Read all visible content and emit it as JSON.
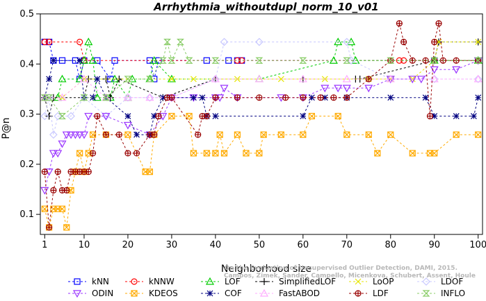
{
  "chart_data": {
    "type": "line",
    "title": "Arrhythmia_withoutdupl_norm_10_v01",
    "xlabel": "Neighborhood size",
    "ylabel": "P@n",
    "xlim": [
      0,
      101
    ],
    "ylim": [
      0.06,
      0.5
    ],
    "xticks": [
      1,
      10,
      20,
      30,
      40,
      50,
      60,
      70,
      80,
      90,
      100
    ],
    "yticks": [
      0.1,
      0.2,
      0.3,
      0.4,
      0.5
    ],
    "grid": false,
    "legend_position": "bottom",
    "watermark": [
      "Campos, Zimek, Sander, Campello, Micenkova, Schubert, Assent, Houle",
      "On the Evaluation of Unsupervised Outlier Detection, DAMI, 2015."
    ],
    "series": [
      {
        "name": "kNN",
        "color": "#0000ff",
        "marker": "square",
        "points": [
          [
            1,
            0.444
          ],
          [
            2,
            0.444
          ],
          [
            3,
            0.407
          ],
          [
            5,
            0.407
          ],
          [
            8,
            0.407
          ],
          [
            9,
            0.37
          ],
          [
            10,
            0.407
          ],
          [
            13,
            0.407
          ],
          [
            16,
            0.37
          ],
          [
            17,
            0.407
          ],
          [
            25,
            0.407
          ],
          [
            26,
            0.37
          ],
          [
            27,
            0.407
          ],
          [
            38,
            0.407
          ],
          [
            43,
            0.407
          ],
          [
            45,
            0.407
          ],
          [
            46,
            0.407
          ],
          [
            90,
            0.407
          ],
          [
            100,
            0.407
          ]
        ]
      },
      {
        "name": "kNNW",
        "color": "#ff0000",
        "marker": "circle",
        "points": [
          [
            1,
            0.444
          ],
          [
            2,
            0.444
          ],
          [
            9,
            0.444
          ],
          [
            10,
            0.407
          ],
          [
            45,
            0.407
          ],
          [
            46,
            0.407
          ],
          [
            80,
            0.407
          ],
          [
            82,
            0.407
          ],
          [
            83,
            0.407
          ],
          [
            90,
            0.407
          ],
          [
            100,
            0.407
          ]
        ]
      },
      {
        "name": "LOF",
        "color": "#00cc00",
        "marker": "triangle-up",
        "points": [
          [
            1,
            0.333
          ],
          [
            4,
            0.333
          ],
          [
            5,
            0.37
          ],
          [
            9,
            0.37
          ],
          [
            10,
            0.407
          ],
          [
            11,
            0.444
          ],
          [
            12,
            0.407
          ],
          [
            13,
            0.333
          ],
          [
            16,
            0.333
          ],
          [
            17,
            0.37
          ],
          [
            20,
            0.333
          ],
          [
            21,
            0.37
          ],
          [
            25,
            0.37
          ],
          [
            26,
            0.407
          ],
          [
            30,
            0.37
          ],
          [
            50,
            0.37
          ],
          [
            67,
            0.407
          ],
          [
            68,
            0.444
          ],
          [
            71,
            0.444
          ],
          [
            72,
            0.407
          ],
          [
            90,
            0.407
          ],
          [
            100,
            0.407
          ]
        ]
      },
      {
        "name": "SimplifiedLOF",
        "color": "#000000",
        "marker": "plus",
        "points": [
          [
            1,
            0.333
          ],
          [
            2,
            0.296
          ],
          [
            3,
            0.333
          ],
          [
            10,
            0.333
          ],
          [
            11,
            0.37
          ],
          [
            15,
            0.37
          ],
          [
            16,
            0.333
          ],
          [
            18,
            0.37
          ],
          [
            28,
            0.333
          ],
          [
            40,
            0.37
          ],
          [
            60,
            0.37
          ],
          [
            72,
            0.37
          ],
          [
            73,
            0.37
          ],
          [
            90,
            0.407
          ],
          [
            91,
            0.444
          ],
          [
            100,
            0.444
          ]
        ]
      },
      {
        "name": "LoOP",
        "color": "#e6e600",
        "marker": "x",
        "points": [
          [
            1,
            0.333
          ],
          [
            5,
            0.333
          ],
          [
            10,
            0.37
          ],
          [
            20,
            0.37
          ],
          [
            30,
            0.37
          ],
          [
            35,
            0.37
          ],
          [
            45,
            0.37
          ],
          [
            55,
            0.37
          ],
          [
            65,
            0.37
          ],
          [
            75,
            0.37
          ],
          [
            80,
            0.37
          ],
          [
            85,
            0.37
          ],
          [
            90,
            0.407
          ],
          [
            91,
            0.444
          ],
          [
            100,
            0.444
          ]
        ]
      },
      {
        "name": "LDOF",
        "color": "#c8c8ff",
        "marker": "diamond",
        "points": [
          [
            1,
            0.296
          ],
          [
            2,
            0.333
          ],
          [
            3,
            0.259
          ],
          [
            4,
            0.296
          ],
          [
            7,
            0.296
          ],
          [
            10,
            0.333
          ],
          [
            15,
            0.296
          ],
          [
            20,
            0.333
          ],
          [
            25,
            0.333
          ],
          [
            30,
            0.333
          ],
          [
            40,
            0.37
          ],
          [
            42,
            0.444
          ],
          [
            50,
            0.444
          ],
          [
            70,
            0.444
          ],
          [
            71,
            0.407
          ],
          [
            80,
            0.37
          ],
          [
            90,
            0.37
          ],
          [
            100,
            0.37
          ]
        ]
      },
      {
        "name": "ODIN",
        "color": "#9933ff",
        "marker": "triangle-down",
        "points": [
          [
            1,
            0.148
          ],
          [
            2,
            0.185
          ],
          [
            3,
            0.222
          ],
          [
            4,
            0.222
          ],
          [
            5,
            0.241
          ],
          [
            6,
            0.259
          ],
          [
            7,
            0.259
          ],
          [
            8,
            0.259
          ],
          [
            9,
            0.259
          ],
          [
            10,
            0.259
          ],
          [
            11,
            0.296
          ],
          [
            15,
            0.296
          ],
          [
            20,
            0.278
          ],
          [
            25,
            0.259
          ],
          [
            28,
            0.296
          ],
          [
            30,
            0.333
          ],
          [
            35,
            0.333
          ],
          [
            40,
            0.333
          ],
          [
            41,
            0.333
          ],
          [
            42,
            0.352
          ],
          [
            45,
            0.333
          ],
          [
            55,
            0.333
          ],
          [
            60,
            0.333
          ],
          [
            65,
            0.352
          ],
          [
            68,
            0.352
          ],
          [
            70,
            0.352
          ],
          [
            75,
            0.352
          ],
          [
            80,
            0.37
          ],
          [
            85,
            0.37
          ],
          [
            87,
            0.37
          ],
          [
            90,
            0.389
          ],
          [
            95,
            0.389
          ],
          [
            100,
            0.407
          ]
        ]
      },
      {
        "name": "KDEOS",
        "color": "#ffaa00",
        "marker": "square-cross",
        "points": [
          [
            1,
            0.111
          ],
          [
            2,
            0.074
          ],
          [
            3,
            0.111
          ],
          [
            4,
            0.111
          ],
          [
            5,
            0.111
          ],
          [
            6,
            0.074
          ],
          [
            7,
            0.148
          ],
          [
            8,
            0.185
          ],
          [
            9,
            0.222
          ],
          [
            10,
            0.185
          ],
          [
            11,
            0.222
          ],
          [
            12,
            0.259
          ],
          [
            15,
            0.259
          ],
          [
            20,
            0.259
          ],
          [
            24,
            0.185
          ],
          [
            25,
            0.185
          ],
          [
            26,
            0.259
          ],
          [
            30,
            0.296
          ],
          [
            34,
            0.296
          ],
          [
            35,
            0.222
          ],
          [
            38,
            0.222
          ],
          [
            40,
            0.222
          ],
          [
            41,
            0.259
          ],
          [
            42,
            0.222
          ],
          [
            45,
            0.259
          ],
          [
            47,
            0.222
          ],
          [
            50,
            0.222
          ],
          [
            51,
            0.259
          ],
          [
            55,
            0.259
          ],
          [
            60,
            0.259
          ],
          [
            62,
            0.296
          ],
          [
            68,
            0.296
          ],
          [
            70,
            0.259
          ],
          [
            75,
            0.259
          ],
          [
            77,
            0.222
          ],
          [
            80,
            0.259
          ],
          [
            85,
            0.222
          ],
          [
            89,
            0.222
          ],
          [
            90,
            0.222
          ],
          [
            95,
            0.259
          ],
          [
            100,
            0.259
          ]
        ]
      },
      {
        "name": "COF",
        "color": "#000080",
        "marker": "star",
        "points": [
          [
            1,
            0.333
          ],
          [
            2,
            0.37
          ],
          [
            3,
            0.407
          ],
          [
            9,
            0.407
          ],
          [
            10,
            0.333
          ],
          [
            12,
            0.333
          ],
          [
            13,
            0.37
          ],
          [
            15,
            0.333
          ],
          [
            20,
            0.296
          ],
          [
            22,
            0.259
          ],
          [
            25,
            0.259
          ],
          [
            26,
            0.296
          ],
          [
            28,
            0.333
          ],
          [
            35,
            0.333
          ],
          [
            37,
            0.333
          ],
          [
            38,
            0.296
          ],
          [
            40,
            0.296
          ],
          [
            60,
            0.296
          ],
          [
            62,
            0.333
          ],
          [
            65,
            0.333
          ],
          [
            70,
            0.333
          ],
          [
            80,
            0.333
          ],
          [
            88,
            0.333
          ],
          [
            90,
            0.296
          ],
          [
            95,
            0.296
          ],
          [
            99,
            0.296
          ],
          [
            100,
            0.333
          ]
        ]
      },
      {
        "name": "FastABOD",
        "color": "#ffaaff",
        "marker": "triangle-up",
        "points": [
          [
            1,
            0.333
          ],
          [
            5,
            0.333
          ],
          [
            10,
            0.37
          ],
          [
            15,
            0.333
          ],
          [
            20,
            0.333
          ],
          [
            25,
            0.333
          ],
          [
            30,
            0.333
          ],
          [
            40,
            0.37
          ],
          [
            50,
            0.37
          ],
          [
            60,
            0.37
          ],
          [
            70,
            0.37
          ],
          [
            80,
            0.37
          ],
          [
            90,
            0.37
          ],
          [
            100,
            0.37
          ]
        ]
      },
      {
        "name": "LDF",
        "color": "#990000",
        "marker": "circle-plus",
        "points": [
          [
            1,
            0.185
          ],
          [
            2,
            0.074
          ],
          [
            3,
            0.148
          ],
          [
            4,
            0.185
          ],
          [
            5,
            0.148
          ],
          [
            6,
            0.148
          ],
          [
            7,
            0.185
          ],
          [
            8,
            0.185
          ],
          [
            9,
            0.185
          ],
          [
            10,
            0.185
          ],
          [
            11,
            0.185
          ],
          [
            12,
            0.222
          ],
          [
            13,
            0.296
          ],
          [
            15,
            0.259
          ],
          [
            18,
            0.259
          ],
          [
            20,
            0.222
          ],
          [
            22,
            0.222
          ],
          [
            25,
            0.259
          ],
          [
            26,
            0.259
          ],
          [
            27,
            0.296
          ],
          [
            29,
            0.333
          ],
          [
            30,
            0.333
          ],
          [
            36,
            0.259
          ],
          [
            37,
            0.296
          ],
          [
            38,
            0.296
          ],
          [
            40,
            0.333
          ],
          [
            45,
            0.333
          ],
          [
            50,
            0.333
          ],
          [
            56,
            0.333
          ],
          [
            60,
            0.333
          ],
          [
            64,
            0.333
          ],
          [
            67,
            0.333
          ],
          [
            70,
            0.333
          ],
          [
            75,
            0.37
          ],
          [
            80,
            0.407
          ],
          [
            82,
            0.481
          ],
          [
            83,
            0.444
          ],
          [
            85,
            0.407
          ],
          [
            88,
            0.407
          ],
          [
            89,
            0.296
          ],
          [
            90,
            0.444
          ],
          [
            91,
            0.481
          ],
          [
            92,
            0.407
          ],
          [
            95,
            0.407
          ],
          [
            100,
            0.407
          ]
        ]
      },
      {
        "name": "INFLO",
        "color": "#88cc66",
        "marker": "hourglass",
        "points": [
          [
            1,
            0.333
          ],
          [
            2,
            0.333
          ],
          [
            5,
            0.296
          ],
          [
            10,
            0.333
          ],
          [
            15,
            0.333
          ],
          [
            20,
            0.37
          ],
          [
            25,
            0.37
          ],
          [
            28,
            0.407
          ],
          [
            29,
            0.444
          ],
          [
            30,
            0.407
          ],
          [
            32,
            0.444
          ],
          [
            34,
            0.407
          ],
          [
            40,
            0.407
          ],
          [
            50,
            0.407
          ],
          [
            60,
            0.407
          ],
          [
            70,
            0.407
          ],
          [
            80,
            0.407
          ],
          [
            90,
            0.407
          ],
          [
            100,
            0.407
          ]
        ]
      }
    ]
  }
}
